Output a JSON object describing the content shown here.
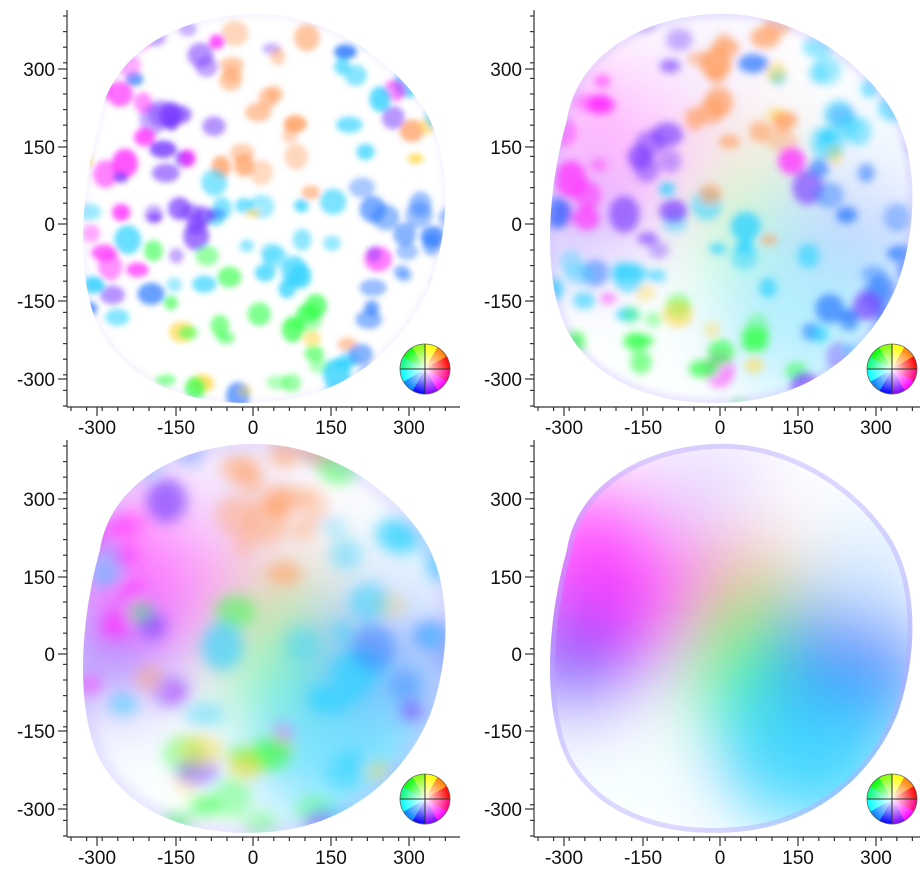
{
  "figure": {
    "x_ticks": [
      "-300",
      "-150",
      "0",
      "150",
      "300"
    ],
    "y_ticks": [
      "300",
      "150",
      "0",
      "-150",
      "-300"
    ]
  },
  "panels": [
    {
      "id": "top-left",
      "color_wheel": "hue-color-wheel"
    },
    {
      "id": "top-right",
      "color_wheel": "hue-color-wheel"
    },
    {
      "id": "bottom-left",
      "color_wheel": "hue-color-wheel"
    },
    {
      "id": "bottom-right",
      "color_wheel": "hue-color-wheel"
    }
  ],
  "colors": {
    "magenta": "#ff2cff",
    "violet": "#7a3cff",
    "blue": "#2f7cff",
    "cyan": "#2fd2ff",
    "green": "#38ff4f",
    "orange": "#ff9f63",
    "yellow": "#ffd84a",
    "red": "#ff3b3b"
  }
}
